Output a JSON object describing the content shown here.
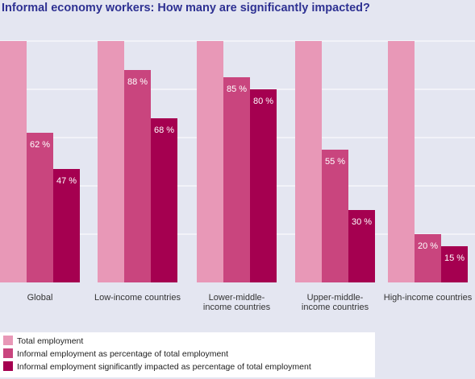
{
  "colors": {
    "background": "#e4e6f1",
    "total": "#e898b7",
    "informal": "#c9457e",
    "impacted": "#a50050"
  },
  "chart_data": {
    "type": "bar",
    "title": "Informal economy workers: How many are significantly impacted?",
    "categories": [
      "Global",
      "Low-income countries",
      "Lower-middle-income countries",
      "Upper-middle-income countries",
      "High-income countries"
    ],
    "category_labels": [
      [
        "Global"
      ],
      [
        "Low-income countries"
      ],
      [
        "Lower-middle-",
        "income countries"
      ],
      [
        "Upper-middle-",
        "income countries"
      ],
      [
        "High-income countries"
      ]
    ],
    "series": [
      {
        "name": "Total employment",
        "values": [
          100,
          100,
          100,
          100,
          100
        ],
        "show_labels": false
      },
      {
        "name": "Informal employment as percentage of total employment",
        "values": [
          62,
          88,
          85,
          55,
          20
        ],
        "show_labels": true
      },
      {
        "name": "Informal employment significantly impacted as percentage of  total employment",
        "values": [
          47,
          68,
          80,
          30,
          15
        ],
        "show_labels": true
      }
    ],
    "value_suffix": " %",
    "ylim": [
      0,
      100
    ],
    "grid": true,
    "legend_position": "bottom-left"
  }
}
